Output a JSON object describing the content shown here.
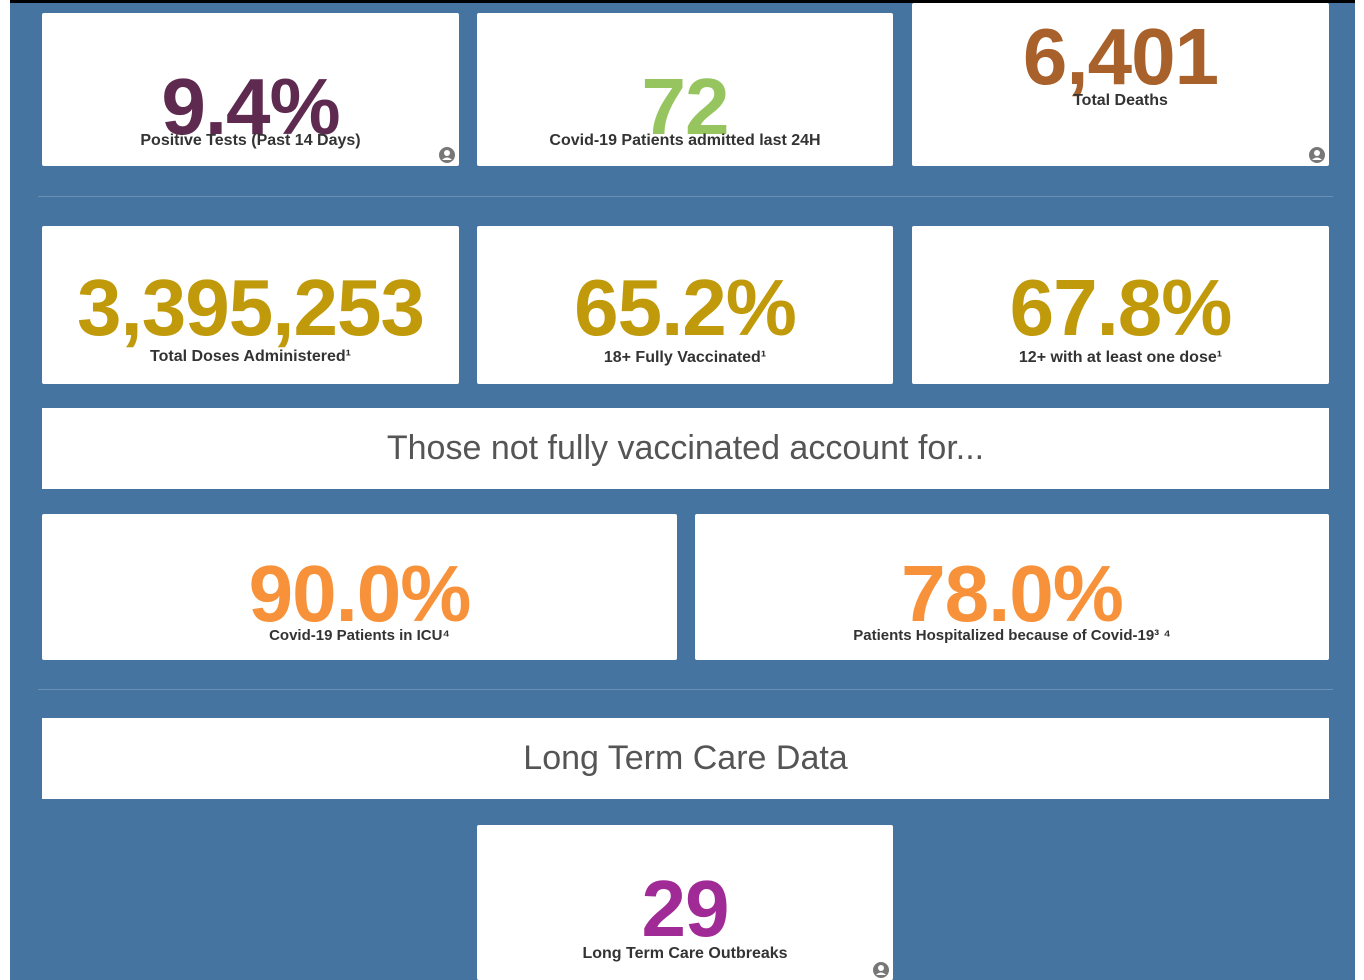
{
  "row1": [
    {
      "value": "9.4%",
      "label": "Positive Tests (Past 14 Days)"
    },
    {
      "value": "72",
      "label": "Covid-19 Patients admitted last 24H"
    },
    {
      "value": "6,401",
      "label": "Total Deaths"
    }
  ],
  "row2": [
    {
      "value": "3,395,253",
      "label": "Total Doses Administered¹"
    },
    {
      "value": "65.2%",
      "label": "18+ Fully Vaccinated¹"
    },
    {
      "value": "67.8%",
      "label": "12+ with at least one dose¹"
    }
  ],
  "banner1": "Those not fully vaccinated account for...",
  "row3": [
    {
      "value": "90.0%",
      "label": "Covid-19 Patients in ICU⁴"
    },
    {
      "value": "78.0%",
      "label": "Patients Hospitalized because of Covid-19³ ⁴"
    }
  ],
  "banner2": "Long Term Care Data",
  "row4": [
    {
      "value": "29",
      "label": "Long Term Care Outbreaks"
    }
  ]
}
